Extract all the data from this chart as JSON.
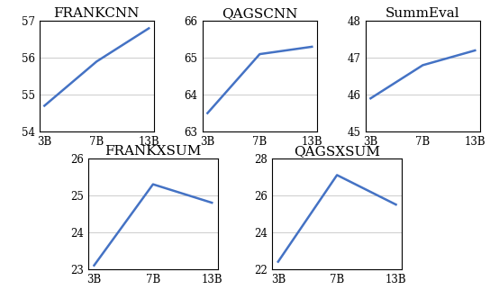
{
  "subplots": [
    {
      "title": "FRANKCNN",
      "x_labels": [
        "3B",
        "7B",
        "13B"
      ],
      "y_values": [
        54.7,
        55.9,
        56.8
      ],
      "ylim": [
        54,
        57
      ],
      "yticks": [
        54,
        55,
        56,
        57
      ]
    },
    {
      "title": "QAGSCNN",
      "x_labels": [
        "3B",
        "7B",
        "13B"
      ],
      "y_values": [
        63.5,
        65.1,
        65.3
      ],
      "ylim": [
        63,
        66
      ],
      "yticks": [
        63,
        64,
        65,
        66
      ]
    },
    {
      "title": "SummEval",
      "x_labels": [
        "3B",
        "7B",
        "13B"
      ],
      "y_values": [
        45.9,
        46.8,
        47.2
      ],
      "ylim": [
        45,
        48
      ],
      "yticks": [
        45,
        46,
        47,
        48
      ]
    },
    {
      "title": "FRANKXSUM",
      "x_labels": [
        "3B",
        "7B",
        "13B"
      ],
      "y_values": [
        23.1,
        25.3,
        24.8
      ],
      "ylim": [
        23,
        26
      ],
      "yticks": [
        23,
        24,
        25,
        26
      ]
    },
    {
      "title": "QAGSXSUM",
      "x_labels": [
        "3B",
        "7B",
        "13B"
      ],
      "y_values": [
        22.4,
        27.1,
        25.5
      ],
      "ylim": [
        22,
        28
      ],
      "yticks": [
        22,
        24,
        26,
        28
      ]
    }
  ],
  "line_color": "#4472C4",
  "line_width": 1.8,
  "grid_color": "#cccccc",
  "title_fontsize": 11,
  "tick_fontsize": 8.5,
  "figsize": [
    5.44,
    3.32
  ],
  "dpi": 100
}
